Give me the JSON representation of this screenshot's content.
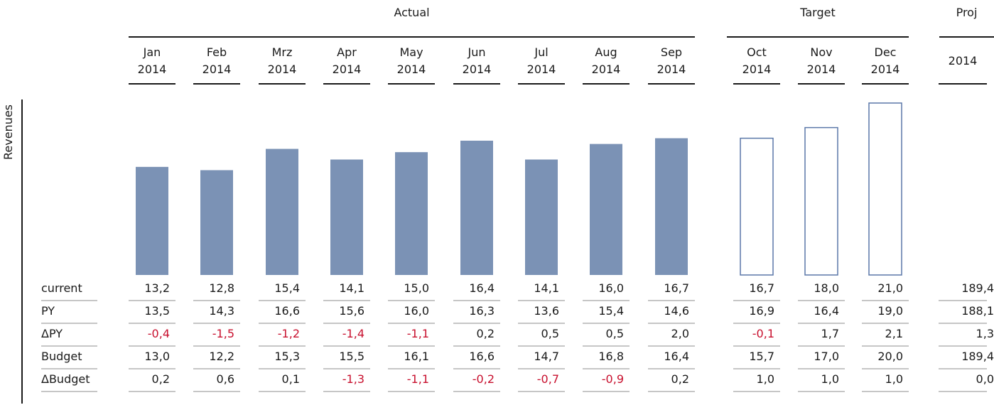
{
  "chart_data": {
    "type": "bar",
    "ylabel": "Revenues",
    "groups": [
      {
        "label": "Actual",
        "columns": [
          0,
          1,
          2,
          3,
          4,
          5,
          6,
          7,
          8
        ]
      },
      {
        "label": "Target",
        "columns": [
          9,
          10,
          11
        ]
      },
      {
        "label": "Proj",
        "columns": [
          12
        ]
      }
    ],
    "categories": [
      [
        "Jan",
        "2014"
      ],
      [
        "Feb",
        "2014"
      ],
      [
        "Mrz",
        "2014"
      ],
      [
        "Apr",
        "2014"
      ],
      [
        "May",
        "2014"
      ],
      [
        "Jun",
        "2014"
      ],
      [
        "Jul",
        "2014"
      ],
      [
        "Aug",
        "2014"
      ],
      [
        "Sep",
        "2014"
      ],
      [
        "Oct",
        "2014"
      ],
      [
        "Nov",
        "2014"
      ],
      [
        "Dec",
        "2014"
      ],
      [
        "2014"
      ]
    ],
    "bars": {
      "values": [
        13.2,
        12.8,
        15.4,
        14.1,
        15.0,
        16.4,
        14.1,
        16.0,
        16.7,
        16.7,
        18.0,
        21.0
      ],
      "style": [
        "filled",
        "filled",
        "filled",
        "filled",
        "filled",
        "filled",
        "filled",
        "filled",
        "filled",
        "outline",
        "outline",
        "outline"
      ]
    },
    "ylim": [
      0,
      21.0
    ],
    "rows": [
      {
        "label": "current",
        "values": [
          "13,2",
          "12,8",
          "15,4",
          "14,1",
          "15,0",
          "16,4",
          "14,1",
          "16,0",
          "16,7",
          "16,7",
          "18,0",
          "21,0",
          "189,4"
        ]
      },
      {
        "label": "PY",
        "values": [
          "13,5",
          "14,3",
          "16,6",
          "15,6",
          "16,0",
          "16,3",
          "13,6",
          "15,4",
          "14,6",
          "16,9",
          "16,4",
          "19,0",
          "188,1"
        ]
      },
      {
        "label": "ΔPY",
        "values": [
          "-0,4",
          "-1,5",
          "-1,2",
          "-1,4",
          "-1,1",
          "0,2",
          "0,5",
          "0,5",
          "2,0",
          "-0,1",
          "1,7",
          "2,1",
          "1,3"
        ]
      },
      {
        "label": "Budget",
        "values": [
          "13,0",
          "12,2",
          "15,3",
          "15,5",
          "16,1",
          "16,6",
          "14,7",
          "16,8",
          "16,4",
          "15,7",
          "17,0",
          "20,0",
          "189,4"
        ]
      },
      {
        "label": "ΔBudget",
        "values": [
          "0,2",
          "0,6",
          "0,1",
          "-1,3",
          "-1,1",
          "-0,2",
          "-0,7",
          "-0,9",
          "0,2",
          "1,0",
          "1,0",
          "1,0",
          "0,0"
        ]
      }
    ],
    "colors": {
      "bar_fill": "#7b92b5",
      "outline": "#5a77a8",
      "negative": "#c8102e",
      "text": "#1a1a1a"
    }
  }
}
